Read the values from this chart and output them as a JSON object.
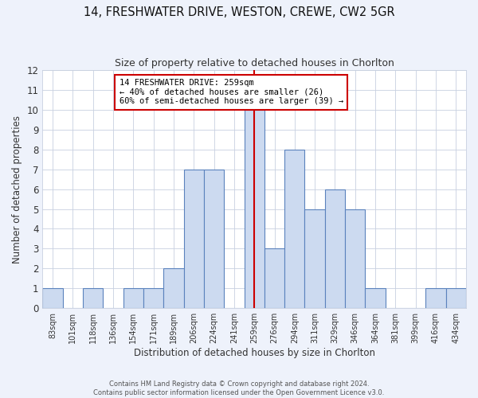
{
  "title": "14, FRESHWATER DRIVE, WESTON, CREWE, CW2 5GR",
  "subtitle": "Size of property relative to detached houses in Chorlton",
  "xlabel": "Distribution of detached houses by size in Chorlton",
  "ylabel": "Number of detached properties",
  "categories": [
    "83sqm",
    "101sqm",
    "118sqm",
    "136sqm",
    "154sqm",
    "171sqm",
    "189sqm",
    "206sqm",
    "224sqm",
    "241sqm",
    "259sqm",
    "276sqm",
    "294sqm",
    "311sqm",
    "329sqm",
    "346sqm",
    "364sqm",
    "381sqm",
    "399sqm",
    "416sqm",
    "434sqm"
  ],
  "values": [
    1,
    0,
    1,
    0,
    1,
    1,
    2,
    7,
    7,
    0,
    10,
    3,
    8,
    5,
    6,
    5,
    1,
    0,
    0,
    1,
    1
  ],
  "bar_color": "#ccdaf0",
  "bar_edge_color": "#5b82bd",
  "highlight_index": 10,
  "highlight_line_color": "#cc0000",
  "annotation_line1": "14 FRESHWATER DRIVE: 259sqm",
  "annotation_line2": "← 40% of detached houses are smaller (26)",
  "annotation_line3": "60% of semi-detached houses are larger (39) →",
  "annotation_box_color": "#ffffff",
  "annotation_box_edge": "#cc0000",
  "ylim": [
    0,
    12
  ],
  "yticks": [
    0,
    1,
    2,
    3,
    4,
    5,
    6,
    7,
    8,
    9,
    10,
    11,
    12
  ],
  "footer1": "Contains HM Land Registry data © Crown copyright and database right 2024.",
  "footer2": "Contains public sector information licensed under the Open Government Licence v3.0.",
  "plot_bg_color": "#ffffff",
  "fig_bg_color": "#eef2fb",
  "grid_color": "#c8d0e0",
  "title_fontsize": 10.5,
  "subtitle_fontsize": 9
}
